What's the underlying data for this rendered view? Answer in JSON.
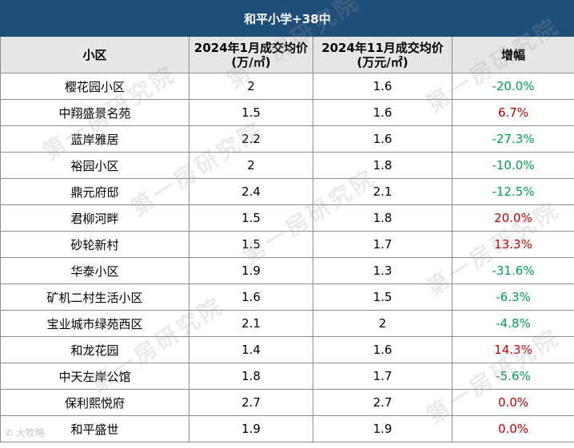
{
  "table": {
    "title": "和平小学+38中",
    "headers": [
      "小区",
      "2024年1月成交均价",
      "(万/㎡)",
      "2024年11月成交均价",
      "(万元/㎡)",
      "增幅"
    ],
    "rows": [
      {
        "name": "樱花园小区",
        "jan": "2",
        "nov": "1.6",
        "change": "-20.0%"
      },
      {
        "name": "中翔盛景名苑",
        "jan": "1.5",
        "nov": "1.6",
        "change": "6.7%"
      },
      {
        "name": "蓝岸雅居",
        "jan": "2.2",
        "nov": "1.6",
        "change": "-27.3%"
      },
      {
        "name": "裕园小区",
        "jan": "2",
        "nov": "1.8",
        "change": "-10.0%"
      },
      {
        "name": "鼎元府邸",
        "jan": "2.4",
        "nov": "2.1",
        "change": "-12.5%"
      },
      {
        "name": "君柳河畔",
        "jan": "1.5",
        "nov": "1.8",
        "change": "20.0%"
      },
      {
        "name": "砂轮新村",
        "jan": "1.5",
        "nov": "1.7",
        "change": "13.3%"
      },
      {
        "name": "华泰小区",
        "jan": "1.9",
        "nov": "1.3",
        "change": "-31.6%"
      },
      {
        "name": "矿机二村生活小区",
        "jan": "1.6",
        "nov": "1.5",
        "change": "-6.3%"
      },
      {
        "name": "宝业城市绿苑西区",
        "jan": "2.1",
        "nov": "2",
        "change": "-4.8%"
      },
      {
        "name": "和龙花园",
        "jan": "1.4",
        "nov": "1.6",
        "change": "14.3%"
      },
      {
        "name": "中天左岸公馆",
        "jan": "1.8",
        "nov": "1.7",
        "change": "-5.6%"
      },
      {
        "name": "保利熙悦府",
        "jan": "2.7",
        "nov": "2.7",
        "change": "0.0%"
      },
      {
        "name": "和平盛世",
        "jan": "1.9",
        "nov": "1.9",
        "change": "0.0%"
      }
    ]
  },
  "watermark": "第一房研究院",
  "logo_text": "大牧略"
}
